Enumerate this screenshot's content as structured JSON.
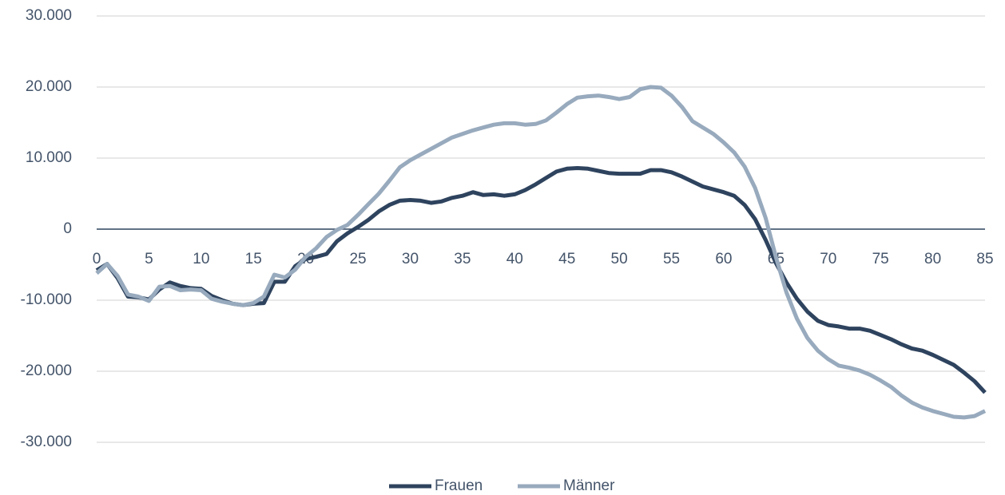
{
  "chart_data": {
    "type": "line",
    "x": [
      0,
      1,
      2,
      3,
      4,
      5,
      6,
      7,
      8,
      9,
      10,
      11,
      12,
      13,
      14,
      15,
      16,
      17,
      18,
      19,
      20,
      21,
      22,
      23,
      24,
      25,
      26,
      27,
      28,
      29,
      30,
      31,
      32,
      33,
      34,
      35,
      36,
      37,
      38,
      39,
      40,
      41,
      42,
      43,
      44,
      45,
      46,
      47,
      48,
      49,
      50,
      51,
      52,
      53,
      54,
      55,
      56,
      57,
      58,
      59,
      60,
      61,
      62,
      63,
      64,
      65,
      66,
      67,
      68,
      69,
      70,
      71,
      72,
      73,
      74,
      75,
      76,
      77,
      78,
      79,
      80,
      81,
      82,
      83,
      84,
      85
    ],
    "series": [
      {
        "name": "Frauen",
        "color": "#2e435e",
        "values": [
          -5800,
          -4900,
          -6900,
          -9500,
          -9600,
          -9900,
          -8500,
          -7500,
          -8000,
          -8300,
          -8400,
          -9400,
          -10000,
          -10500,
          -10700,
          -10500,
          -10400,
          -7400,
          -7400,
          -5200,
          -4200,
          -3900,
          -3500,
          -1700,
          -600,
          300,
          1300,
          2500,
          3400,
          4000,
          4100,
          4000,
          3700,
          3900,
          4400,
          4700,
          5200,
          4800,
          4900,
          4700,
          4900,
          5500,
          6300,
          7200,
          8100,
          8500,
          8600,
          8500,
          8200,
          7900,
          7800,
          7800,
          7800,
          8300,
          8300,
          8000,
          7400,
          6700,
          6000,
          5600,
          5200,
          4700,
          3400,
          1400,
          -1500,
          -4800,
          -7500,
          -9800,
          -11600,
          -12900,
          -13500,
          -13700,
          -14000,
          -14000,
          -14300,
          -14900,
          -15500,
          -16200,
          -16800,
          -17100,
          -17700,
          -18400,
          -19100,
          -20200,
          -21400,
          -23000
        ]
      },
      {
        "name": "Männer",
        "color": "#98aabd",
        "values": [
          -6200,
          -4900,
          -6600,
          -9200,
          -9500,
          -10100,
          -8100,
          -8000,
          -8600,
          -8500,
          -8600,
          -9800,
          -10200,
          -10500,
          -10700,
          -10400,
          -9500,
          -6400,
          -6800,
          -5700,
          -3900,
          -2700,
          -1100,
          -100,
          600,
          2000,
          3500,
          5000,
          6800,
          8700,
          9700,
          10500,
          11300,
          12100,
          12900,
          13400,
          13900,
          14300,
          14700,
          14900,
          14900,
          14700,
          14800,
          15300,
          16400,
          17600,
          18500,
          18700,
          18800,
          18600,
          18300,
          18600,
          19700,
          20000,
          19900,
          18800,
          17200,
          15200,
          14300,
          13400,
          12200,
          10800,
          8800,
          5800,
          1600,
          -4000,
          -8900,
          -12600,
          -15300,
          -17100,
          -18300,
          -19200,
          -19500,
          -19900,
          -20500,
          -21300,
          -22200,
          -23400,
          -24400,
          -25100,
          -25600,
          -26000,
          -26400,
          -26500,
          -26300,
          -25600
        ]
      }
    ],
    "xlim": [
      0,
      85
    ],
    "xticks": [
      0,
      5,
      10,
      15,
      20,
      25,
      30,
      35,
      40,
      45,
      50,
      55,
      60,
      65,
      70,
      75,
      80,
      85
    ],
    "ylim": [
      -30000,
      30000
    ],
    "yticks": [
      {
        "value": -30000,
        "label": "-30.000"
      },
      {
        "value": -20000,
        "label": "-20.000"
      },
      {
        "value": -10000,
        "label": "-10.000"
      },
      0,
      {
        "value": 10000,
        "label": "10.000"
      },
      {
        "value": 20000,
        "label": "20.000"
      },
      {
        "value": 30000,
        "label": "30.000"
      }
    ],
    "grid": true,
    "legend": "bottom"
  }
}
